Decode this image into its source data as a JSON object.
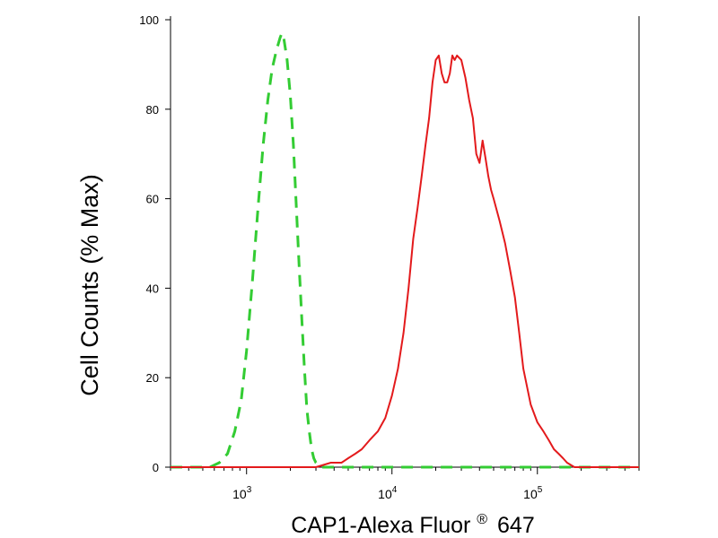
{
  "chart_data": {
    "type": "line",
    "title": "",
    "xlabel": "CAP1-Alexa Fluor",
    "xlabel_superscript": "®",
    "xlabel_suffix": "647",
    "ylabel": "Cell Counts (% Max)",
    "x_scale": "log",
    "xlim": [
      300,
      500000
    ],
    "ylim": [
      0,
      100
    ],
    "y_ticks": [
      0,
      20,
      40,
      60,
      80,
      100
    ],
    "x_major_ticks": [
      {
        "value": 1000,
        "base": "10",
        "exponent": "3"
      },
      {
        "value": 10000,
        "base": "10",
        "exponent": "4"
      },
      {
        "value": 100000,
        "base": "10",
        "exponent": "5"
      }
    ],
    "grid": false,
    "legend": "none",
    "series": [
      {
        "color": "#33cc33",
        "style": "dashed",
        "x": [
          300,
          560,
          650,
          740,
          830,
          920,
          1000,
          1100,
          1200,
          1300,
          1400,
          1500,
          1600,
          1700,
          1750,
          1800,
          1900,
          2000,
          2100,
          2200,
          2300,
          2400,
          2500,
          2600,
          2700,
          2800,
          2900,
          3000,
          3200,
          4000,
          10000,
          100000,
          500000
        ],
        "y": [
          0,
          0,
          1,
          3,
          8,
          15,
          26,
          42,
          58,
          72,
          82,
          89,
          93,
          96,
          97,
          96,
          91,
          83,
          72,
          58,
          45,
          33,
          22,
          13,
          8,
          4,
          2,
          1,
          0,
          0,
          0,
          0,
          0
        ]
      },
      {
        "color": "#e31a1c",
        "style": "solid",
        "x": [
          300,
          1000,
          2000,
          3000,
          3800,
          4500,
          5000,
          5600,
          6200,
          7000,
          8000,
          9000,
          10000,
          11000,
          12000,
          13000,
          14000,
          15000,
          16000,
          17000,
          18000,
          19000,
          20000,
          21000,
          22000,
          23000,
          24000,
          25000,
          26000,
          27000,
          28000,
          30000,
          32000,
          34000,
          36000,
          38000,
          40000,
          42000,
          44000,
          46000,
          48000,
          50000,
          55000,
          60000,
          65000,
          70000,
          75000,
          80000,
          90000,
          100000,
          110000,
          120000,
          130000,
          140000,
          150000,
          160000,
          180000,
          200000,
          500000
        ],
        "y": [
          0,
          0,
          0,
          0,
          1,
          1,
          2,
          3,
          4,
          6,
          8,
          11,
          16,
          22,
          30,
          40,
          51,
          58,
          65,
          72,
          78,
          86,
          91,
          92,
          88,
          86,
          86,
          88,
          92,
          91,
          92,
          91,
          87,
          82,
          78,
          70,
          68,
          73,
          69,
          65,
          62,
          60,
          55,
          50,
          44,
          38,
          30,
          22,
          14,
          10,
          8,
          6,
          4,
          3,
          2,
          1,
          0,
          0,
          0
        ]
      }
    ]
  }
}
